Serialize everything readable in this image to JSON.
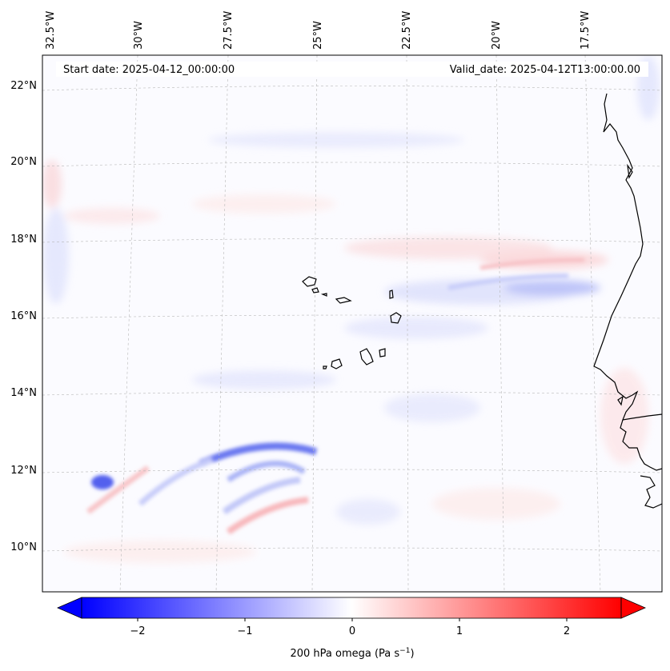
{
  "map": {
    "start_label": "Start date: 2025-04-12_00:00:00",
    "valid_label": "Valid_date: 2025-04-12T13:00:00.00",
    "lon_labels": [
      "32.5°W",
      "30°W",
      "27.5°W",
      "25°W",
      "22.5°W",
      "20°W",
      "17.5°W"
    ],
    "lat_labels": [
      "22°N",
      "20°N",
      "18°N",
      "16°N",
      "14°N",
      "12°N",
      "10°N"
    ],
    "field": "200 hPa omega",
    "extent": {
      "lon": [
        -33.6,
        -15.1
      ],
      "lat": [
        8.9,
        22.7
      ]
    }
  },
  "colorbar": {
    "label": "200 hPa omega (Pa s",
    "label_sup": "−1",
    "label_close": ")",
    "ticks": [
      "−2",
      "−1",
      "0",
      "1",
      "2"
    ],
    "range": [
      -2.7,
      2.7
    ],
    "cmap": "bwr",
    "extend": "both",
    "colors": {
      "negative": "#0000ff",
      "zero": "#ffffff",
      "positive": "#ff0000"
    }
  }
}
